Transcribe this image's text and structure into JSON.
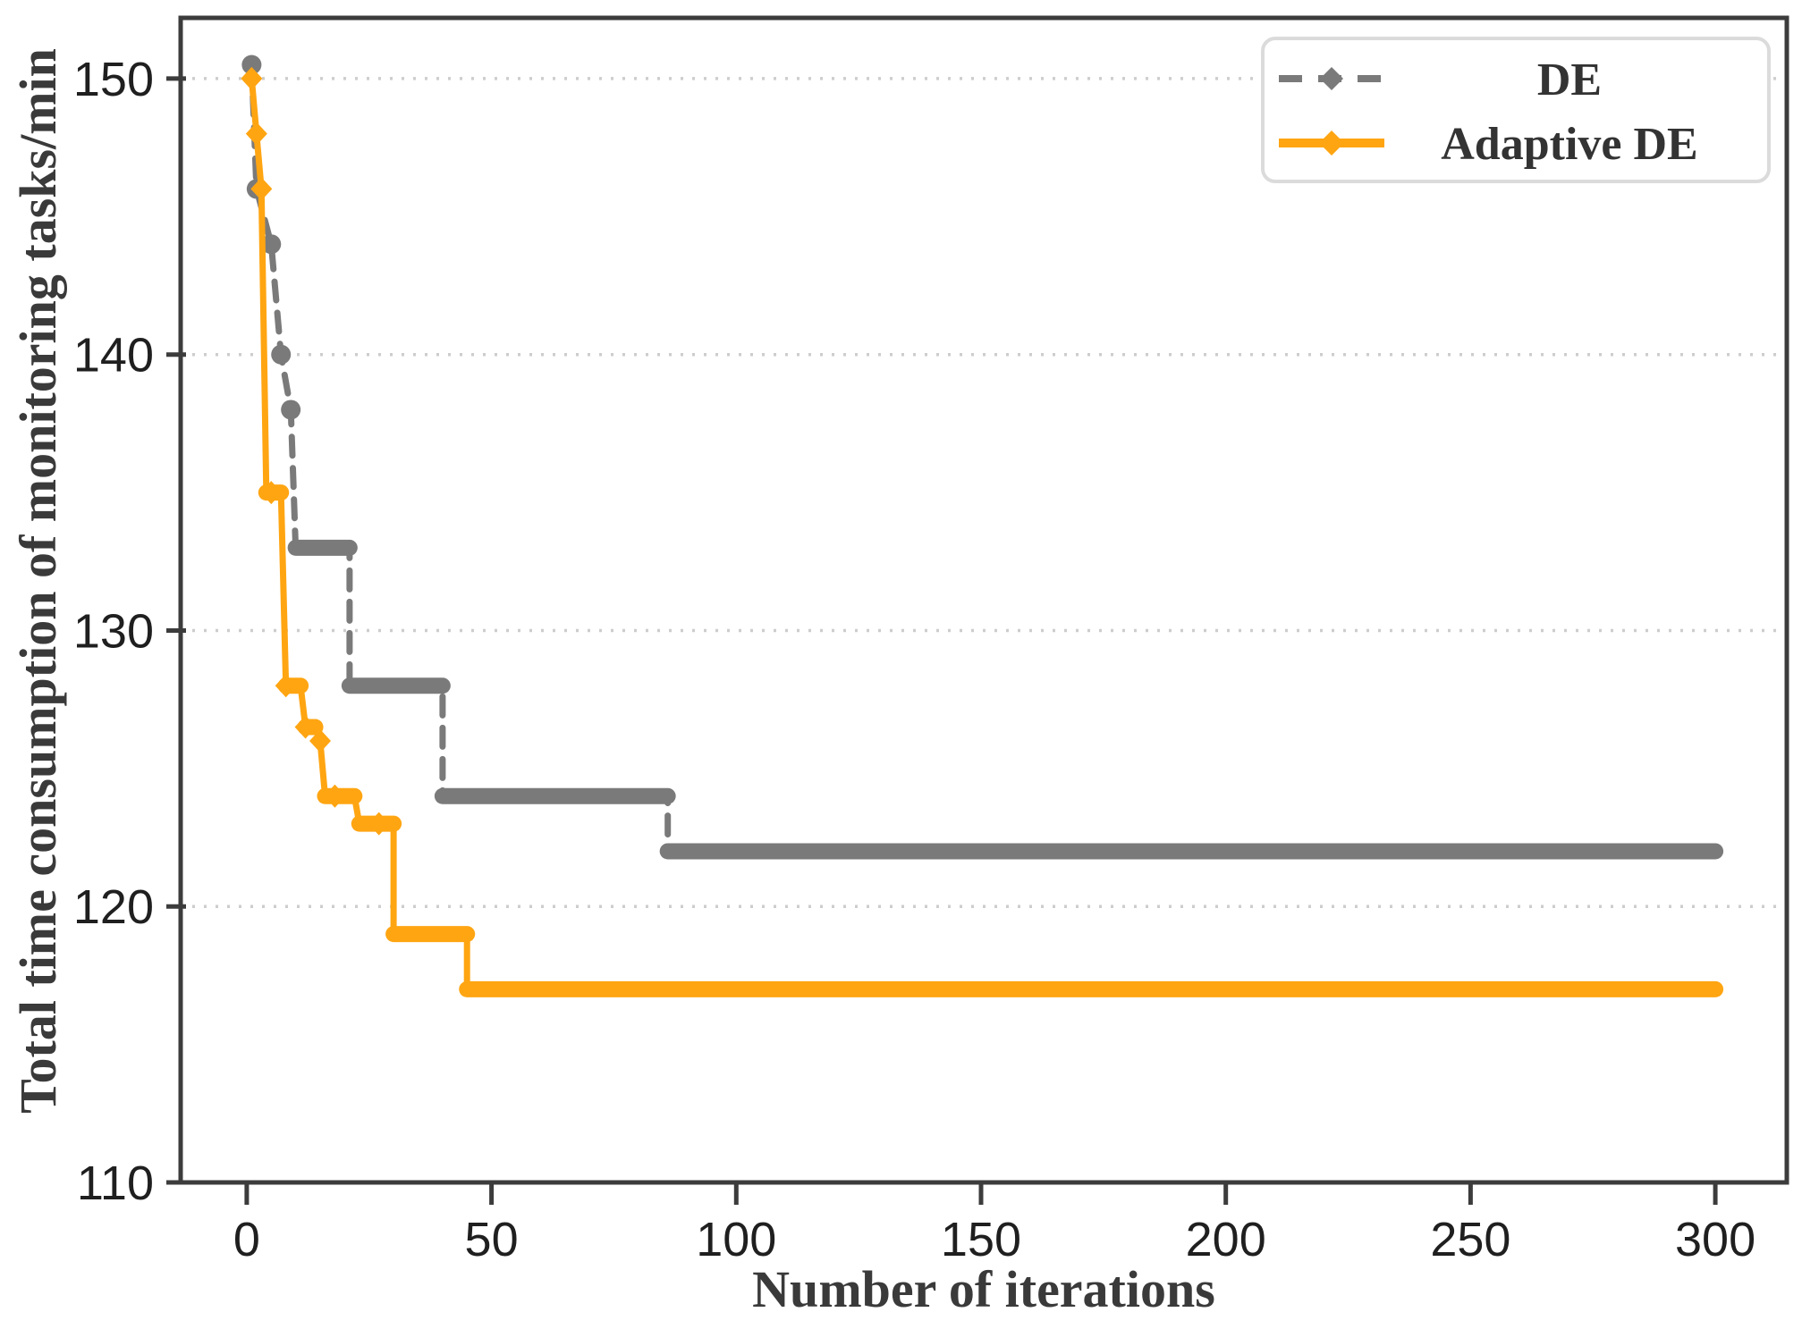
{
  "figure": {
    "background": "#ffffff"
  },
  "chart_data": {
    "type": "line",
    "title": "",
    "xlabel": "Number of iterations",
    "ylabel": "Total time consumption of monitoring tasks/min",
    "x_ticks": [
      0,
      50,
      100,
      150,
      200,
      250,
      300
    ],
    "y_ticks": [
      110,
      120,
      130,
      140,
      150
    ],
    "xlim": [
      -13.5,
      314.6
    ],
    "ylim": [
      110,
      152.2
    ],
    "grid": "horizontal-dotted",
    "legend_position": "upper-right",
    "series": [
      {
        "name": "DE",
        "color": "#7A7A7A",
        "line_style": "dashed",
        "marker": "circle",
        "points": [
          [
            1,
            150.5
          ],
          [
            2,
            146
          ],
          [
            5,
            144
          ],
          [
            7,
            140
          ],
          [
            9,
            138
          ],
          [
            10,
            133
          ],
          [
            21,
            133
          ],
          [
            21,
            128
          ],
          [
            40,
            128
          ],
          [
            40,
            124
          ],
          [
            86,
            124
          ],
          [
            86,
            122
          ],
          [
            300,
            122
          ]
        ],
        "plateaus": [
          [
            10,
            21,
            133
          ],
          [
            21,
            40,
            128
          ],
          [
            40,
            86,
            124
          ],
          [
            86,
            300,
            122
          ]
        ],
        "marker_points": [
          [
            1,
            150.5
          ],
          [
            2,
            146
          ],
          [
            5,
            144
          ],
          [
            7,
            140
          ],
          [
            9,
            138
          ]
        ]
      },
      {
        "name": "Adaptive DE",
        "color": "#FFA512",
        "line_style": "solid",
        "marker": "diamond",
        "points": [
          [
            1,
            150
          ],
          [
            2,
            148
          ],
          [
            3,
            146
          ],
          [
            4,
            135
          ],
          [
            7,
            135
          ],
          [
            8,
            128
          ],
          [
            11,
            128
          ],
          [
            12,
            126.5
          ],
          [
            14,
            126.5
          ],
          [
            15,
            126
          ],
          [
            16,
            124
          ],
          [
            22,
            124
          ],
          [
            23,
            123
          ],
          [
            30,
            123
          ],
          [
            30,
            119
          ],
          [
            45,
            119
          ],
          [
            45,
            117
          ],
          [
            300,
            117
          ]
        ],
        "plateaus": [
          [
            4,
            7,
            135
          ],
          [
            8,
            11,
            128
          ],
          [
            12,
            14,
            126.5
          ],
          [
            16,
            22,
            124
          ],
          [
            23,
            30,
            123
          ],
          [
            30,
            45,
            119
          ],
          [
            45,
            300,
            117
          ]
        ],
        "marker_points": [
          [
            1,
            150
          ],
          [
            2,
            148
          ],
          [
            3,
            146
          ],
          [
            5,
            135
          ],
          [
            8,
            128
          ],
          [
            12,
            126.5
          ],
          [
            15,
            126
          ],
          [
            18,
            124
          ],
          [
            27,
            123
          ]
        ]
      }
    ],
    "colors": {
      "grid": "#CDCDCD",
      "spine": "#3C3C3C",
      "tick_label": "#1F1F1F",
      "axis_title": "#3A3A3A",
      "legend_text": "#333333",
      "legend_border": "#DBDBDB",
      "legend_fill": "#FFFFFF"
    }
  }
}
